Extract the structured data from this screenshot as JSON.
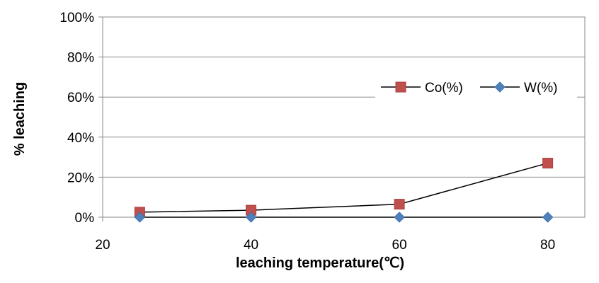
{
  "chart_data": {
    "type": "line",
    "title": "",
    "xlabel": "leaching temperature(℃)",
    "ylabel": "% leaching",
    "xlim": [
      20,
      85
    ],
    "xticks": [
      "20",
      "40",
      "60",
      "80"
    ],
    "ylim": [
      0,
      100
    ],
    "yticks": [
      "0%",
      "20%",
      "40%",
      "60%",
      "80%",
      "100%"
    ],
    "grid": "horizontal",
    "legend_position": "right",
    "series": [
      {
        "name": "Co(%)",
        "marker": "square",
        "color": "#C0504D",
        "line_color": "#000000",
        "x": [
          25,
          40,
          60,
          80
        ],
        "y": [
          2.5,
          3.5,
          6.5,
          27
        ]
      },
      {
        "name": "W(%)",
        "marker": "diamond",
        "color": "#4F81BD",
        "line_color": "#000000",
        "x": [
          25,
          40,
          60,
          80
        ],
        "y": [
          0,
          0,
          0,
          0
        ]
      }
    ]
  }
}
